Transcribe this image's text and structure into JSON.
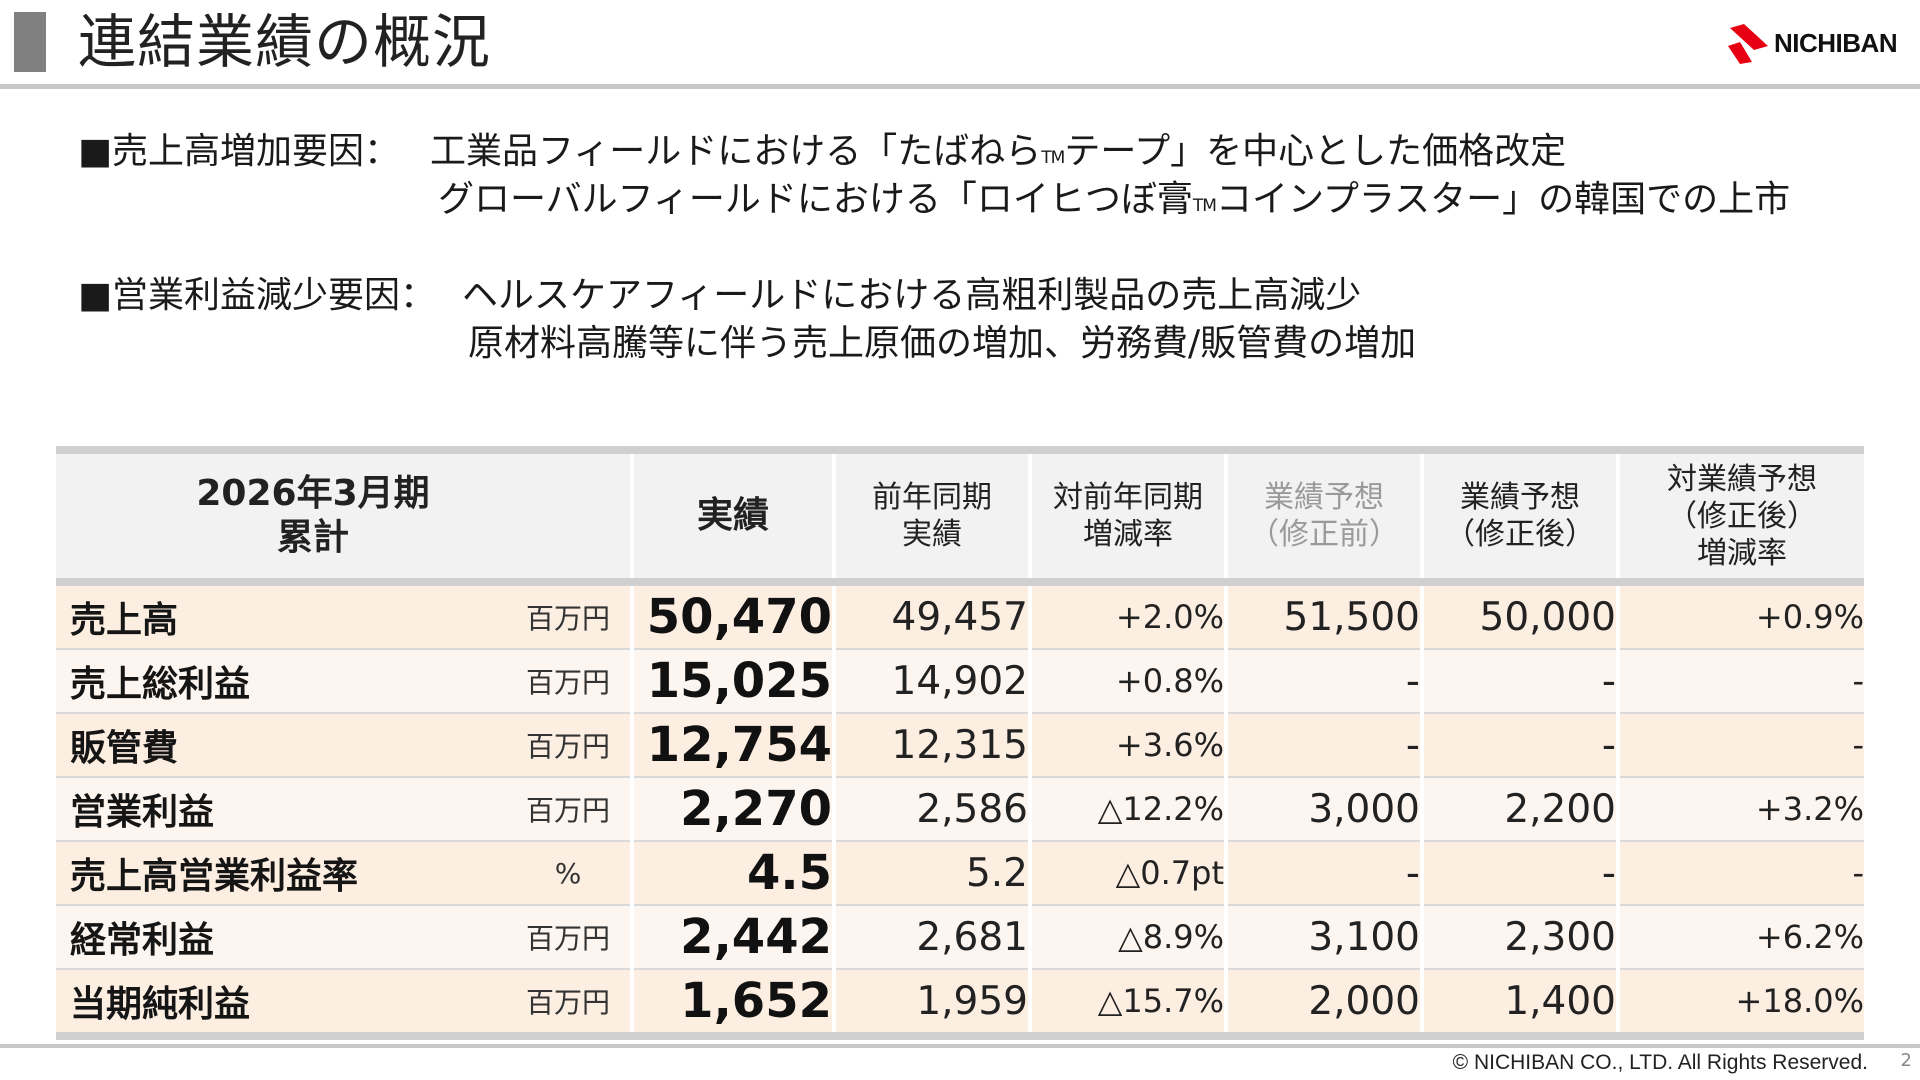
{
  "header": {
    "title": "連結業績の概況",
    "logo_text": "NICHIBAN"
  },
  "bullets": [
    {
      "lead": "■売上高増加要因：",
      "lines": [
        {
          "pre": "工業品フィールドにおける「たばねら",
          "tm": "TM",
          "post": "テープ」を中心とした価格改定"
        },
        {
          "pre": "グローバルフィールドにおける「ロイヒつぼ膏",
          "tm": "TM",
          "post": "コインプラスター」の韓国での上市"
        }
      ]
    },
    {
      "lead": "■営業利益減少要因：",
      "lines": [
        {
          "pre": "ヘルスケアフィールドにおける高粗利製品の売上高減少"
        },
        {
          "pre": "原材料高騰等に伴う売上原価の増加、労務費/販管費の増加"
        }
      ]
    }
  ],
  "table": {
    "headers": {
      "period_line1": "2026年3月期",
      "period_line2": "累計",
      "actual": "実績",
      "prev_line1": "前年同期",
      "prev_line2": "実績",
      "yoy_line1": "対前年同期",
      "yoy_line2": "増減率",
      "fc_before_line1": "業績予想",
      "fc_before_line2": "（修正前）",
      "fc_after_line1": "業績予想",
      "fc_after_line2": "（修正後）",
      "vs_fc_line1": "対業績予想",
      "vs_fc_line2": "（修正後）",
      "vs_fc_line3": "増減率"
    },
    "rows": [
      {
        "item": "売上高",
        "unit": "百万円",
        "actual": "50,470",
        "prev": "49,457",
        "yoy": "+2.0%",
        "fc_before": "51,500",
        "fc_after": "50,000",
        "vs_fc": "+0.9%"
      },
      {
        "item": "売上総利益",
        "unit": "百万円",
        "actual": "15,025",
        "prev": "14,902",
        "yoy": "+0.8%",
        "fc_before": "-",
        "fc_after": "-",
        "vs_fc": "-"
      },
      {
        "item": "販管費",
        "unit": "百万円",
        "actual": "12,754",
        "prev": "12,315",
        "yoy": "+3.6%",
        "fc_before": "-",
        "fc_after": "-",
        "vs_fc": "-"
      },
      {
        "item": "営業利益",
        "unit": "百万円",
        "actual": "2,270",
        "prev": "2,586",
        "yoy": "△12.2%",
        "fc_before": "3,000",
        "fc_after": "2,200",
        "vs_fc": "+3.2%"
      },
      {
        "item": "売上高営業利益率",
        "unit": "%",
        "actual": "4.5",
        "prev": "5.2",
        "yoy": "△0.7pt",
        "fc_before": "-",
        "fc_after": "-",
        "vs_fc": "-"
      },
      {
        "item": "経常利益",
        "unit": "百万円",
        "actual": "2,442",
        "prev": "2,681",
        "yoy": "△8.9%",
        "fc_before": "3,100",
        "fc_after": "2,300",
        "vs_fc": "+6.2%"
      },
      {
        "item": "当期純利益",
        "unit": "百万円",
        "actual": "1,652",
        "prev": "1,959",
        "yoy": "△15.7%",
        "fc_before": "2,000",
        "fc_after": "1,400",
        "vs_fc": "+18.0%"
      }
    ]
  },
  "footer": {
    "copyright": "© NICHIBAN CO., LTD. All Rights Reserved.",
    "page_number": "2"
  },
  "colors": {
    "row_odd": "#fdeee2",
    "row_even": "#fdf5ef",
    "header_bg": "#f2f2f2",
    "rule": "#c8c8c8",
    "logo_red": "#e60012"
  }
}
